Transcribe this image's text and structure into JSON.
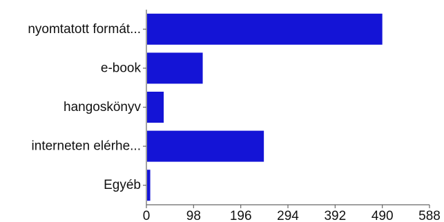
{
  "chart_data": {
    "type": "bar",
    "orientation": "horizontal",
    "categories": [
      "nyomtatott formát...",
      "e-book",
      "hangoskönyv",
      "interneten elérhe...",
      "Egyéb"
    ],
    "values": [
      490,
      117,
      36,
      244,
      8
    ],
    "xlim": [
      0,
      588
    ],
    "xticks": [
      0,
      98,
      196,
      294,
      392,
      490,
      588
    ],
    "grid": false,
    "colors": {
      "bar": "#1414d6",
      "axis": "#666666",
      "text": "#111111"
    }
  }
}
